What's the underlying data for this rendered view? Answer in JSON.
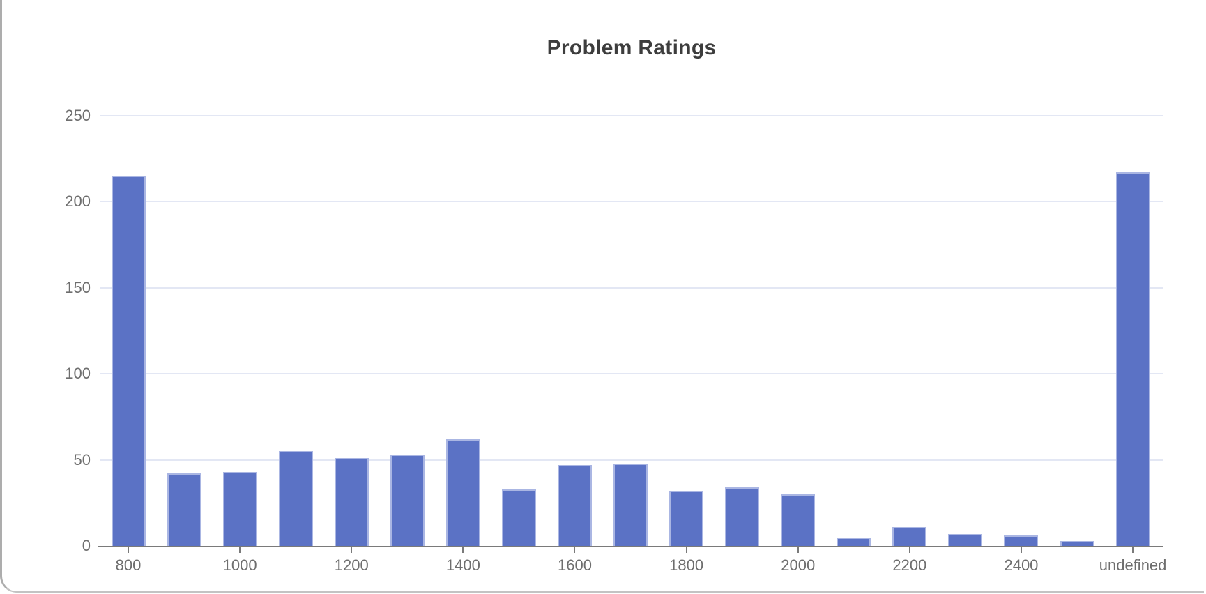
{
  "page": {
    "title": "Problem Ratings"
  },
  "chart_data": {
    "type": "bar",
    "title": "Problem Ratings",
    "categories": [
      "800",
      "900",
      "1000",
      "1100",
      "1200",
      "1300",
      "1400",
      "1500",
      "1600",
      "1700",
      "1800",
      "1900",
      "2000",
      "2100",
      "2200",
      "2300",
      "2400",
      "2500",
      "undefined"
    ],
    "values": [
      215,
      42,
      43,
      55,
      51,
      53,
      62,
      33,
      47,
      48,
      32,
      34,
      30,
      5,
      11,
      7,
      6,
      3,
      217
    ],
    "x_tick_labels": [
      "800",
      "1000",
      "1200",
      "1400",
      "1600",
      "1800",
      "2000",
      "2200",
      "2400",
      "undefined"
    ],
    "yticks": [
      0,
      50,
      100,
      150,
      200,
      250
    ],
    "ylim": [
      0,
      250
    ],
    "xlabel": "",
    "ylabel": "",
    "grid": true,
    "legend": false,
    "colors": {
      "bar_fill": "#5b72c5",
      "bar_border": "#aab6e3",
      "gridline": "#e3e7f4",
      "axis_line": "#7a7a7a",
      "tick_label": "#6e6e6e",
      "title": "#3d3d3d"
    }
  }
}
